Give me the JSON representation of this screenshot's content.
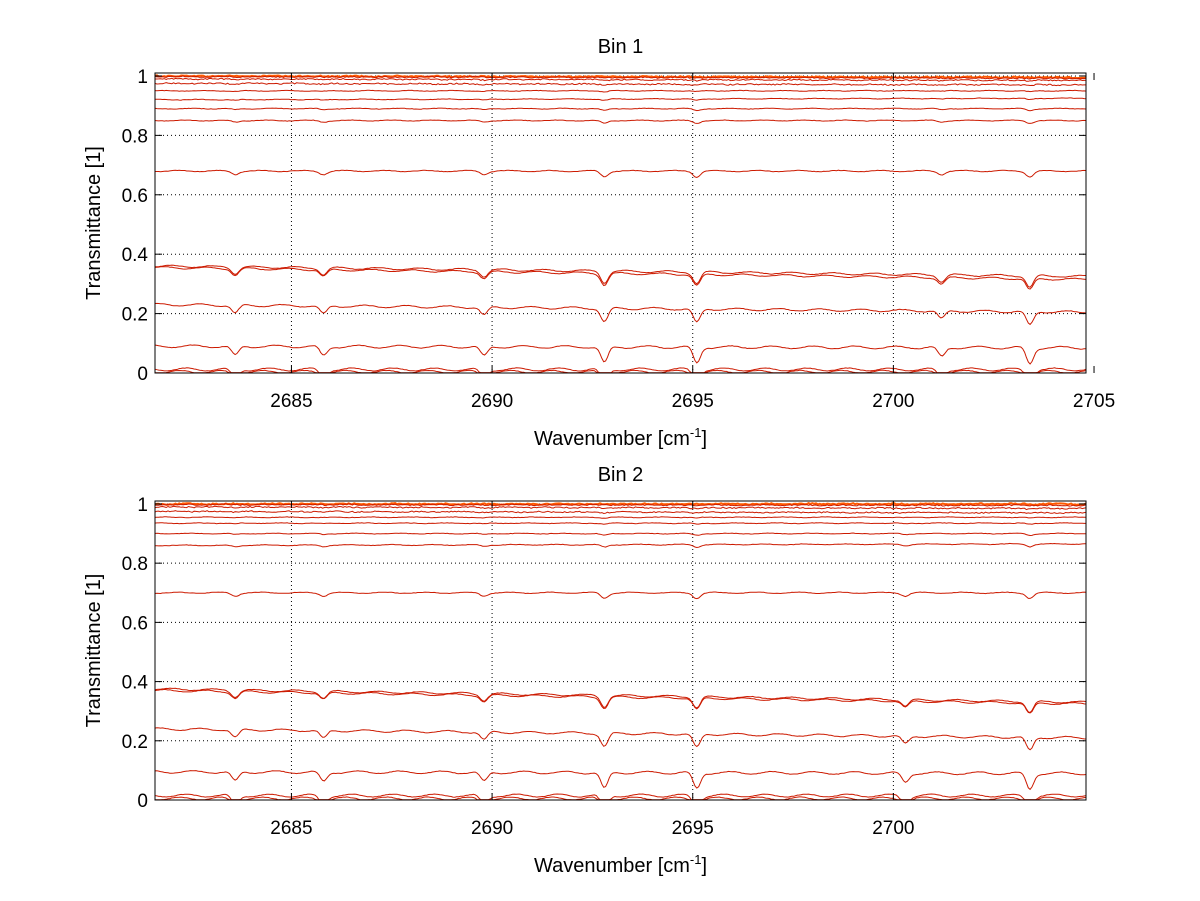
{
  "chart_data": [
    {
      "type": "line",
      "title": "Bin 1",
      "xlabel": "Wavenumber [cm",
      "xlabel_sup": "-1",
      "xlabel_end": "]",
      "ylabel": "Transmittance [1]",
      "xlim": [
        2681.6,
        2704.8
      ],
      "ylim": [
        0,
        1.01
      ],
      "xticks": [
        2685,
        2690,
        2695,
        2700,
        2705
      ],
      "xtick_labels": [
        "2685",
        "2690",
        "2695",
        "2700",
        "2705"
      ],
      "yticks": [
        0,
        0.2,
        0.4,
        0.6,
        0.8,
        1
      ],
      "ytick_labels": [
        "0",
        "0.2",
        "0.4",
        "0.6",
        "0.8",
        "1"
      ],
      "grid": true,
      "line_color": "#cc1a00",
      "top_line_color": "#ff5a00",
      "dips": [
        2683.6,
        2685.8,
        2689.8,
        2692.8,
        2695.1,
        2701.2,
        2703.4
      ],
      "series": [
        {
          "y_start": 1.0,
          "y_end": 0.995
        },
        {
          "y_start": 0.998,
          "y_end": 0.992
        },
        {
          "y_start": 0.99,
          "y_end": 0.985
        },
        {
          "y_start": 0.975,
          "y_end": 0.97
        },
        {
          "y_start": 0.95,
          "y_end": 0.95
        },
        {
          "y_start": 0.92,
          "y_end": 0.925
        },
        {
          "y_start": 0.89,
          "y_end": 0.89
        },
        {
          "y_start": 0.85,
          "y_end": 0.85
        },
        {
          "y_start": 0.68,
          "y_end": 0.68
        },
        {
          "y_start": 0.36,
          "y_end": 0.325
        },
        {
          "y_start": 0.355,
          "y_end": 0.315
        },
        {
          "y_start": 0.23,
          "y_end": 0.205
        },
        {
          "y_start": 0.09,
          "y_end": 0.085
        },
        {
          "y_start": 0.012,
          "y_end": 0.012
        },
        {
          "y_start": 0.004,
          "y_end": 0.004
        }
      ]
    },
    {
      "type": "line",
      "title": "Bin 2",
      "xlabel": "Wavenumber [cm",
      "xlabel_sup": "-1",
      "xlabel_end": "]",
      "ylabel": "Transmittance [1]",
      "xlim": [
        2681.6,
        2704.8
      ],
      "ylim": [
        0,
        1.01
      ],
      "xticks": [
        2685,
        2690,
        2695,
        2700
      ],
      "xtick_labels": [
        "2685",
        "2690",
        "2695",
        "2700"
      ],
      "yticks": [
        0,
        0.2,
        0.4,
        0.6,
        0.8,
        1
      ],
      "ytick_labels": [
        "0",
        "0.2",
        "0.4",
        "0.6",
        "0.8",
        "1"
      ],
      "grid": true,
      "line_color": "#cc1a00",
      "top_line_color": "#ff5a00",
      "dips": [
        2683.6,
        2685.8,
        2689.8,
        2692.8,
        2695.1,
        2700.3,
        2703.4
      ],
      "series": [
        {
          "y_start": 1.0,
          "y_end": 1.0
        },
        {
          "y_start": 0.998,
          "y_end": 0.995
        },
        {
          "y_start": 0.99,
          "y_end": 0.985
        },
        {
          "y_start": 0.975,
          "y_end": 0.97
        },
        {
          "y_start": 0.955,
          "y_end": 0.955
        },
        {
          "y_start": 0.935,
          "y_end": 0.935
        },
        {
          "y_start": 0.9,
          "y_end": 0.9
        },
        {
          "y_start": 0.86,
          "y_end": 0.865
        },
        {
          "y_start": 0.7,
          "y_end": 0.7
        },
        {
          "y_start": 0.375,
          "y_end": 0.33
        },
        {
          "y_start": 0.37,
          "y_end": 0.325
        },
        {
          "y_start": 0.24,
          "y_end": 0.21
        },
        {
          "y_start": 0.095,
          "y_end": 0.09
        },
        {
          "y_start": 0.015,
          "y_end": 0.015
        },
        {
          "y_start": 0.005,
          "y_end": 0.005
        }
      ]
    }
  ]
}
